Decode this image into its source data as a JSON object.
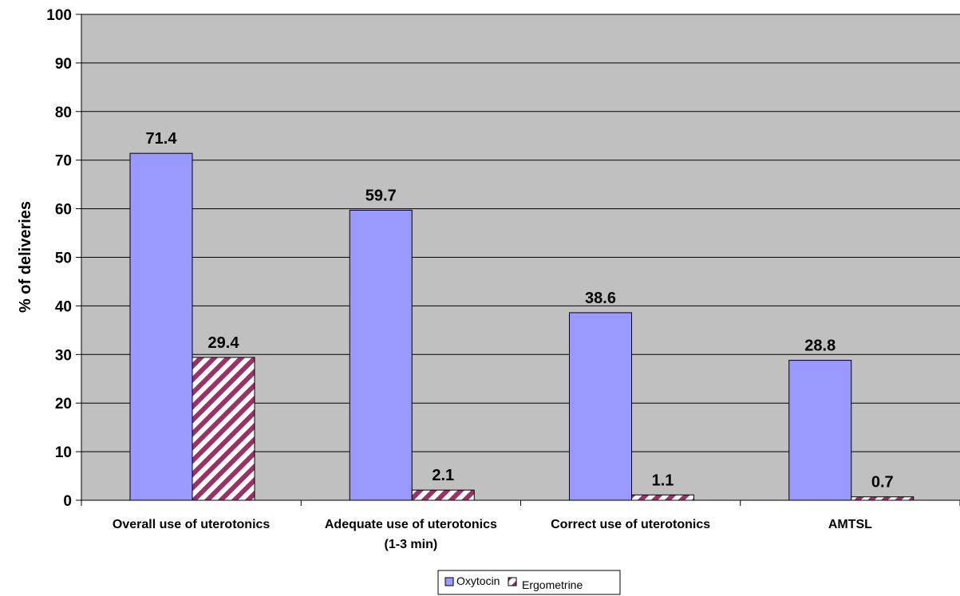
{
  "chart_data": {
    "type": "bar",
    "ylabel": "% of deliveries",
    "xlabel": "",
    "ylim": [
      0,
      100
    ],
    "yticks": [
      0,
      10,
      20,
      30,
      40,
      50,
      60,
      70,
      80,
      90,
      100
    ],
    "grid": true,
    "legend_position": "bottom",
    "categories": [
      [
        "Overall use of uterotonics"
      ],
      [
        "Adequate use of uterotonics",
        "(1-3 min)"
      ],
      [
        "Correct use of uterotonics"
      ],
      [
        "AMTSL"
      ]
    ],
    "series": [
      {
        "name": "Oxytocin",
        "values": [
          71.4,
          59.7,
          38.6,
          28.8
        ],
        "labels": [
          "71.4",
          "59.7",
          "38.6",
          "28.8"
        ],
        "color": "#9999ff",
        "pattern": "solid"
      },
      {
        "name": "Ergometrine",
        "values": [
          29.4,
          2.1,
          1.1,
          0.7
        ],
        "labels": [
          "29.4",
          "2.1",
          "1.1",
          "0.7"
        ],
        "color": "#993366",
        "pattern": "diagonal-stripes"
      }
    ],
    "plot_background": "#c0c0c0"
  }
}
